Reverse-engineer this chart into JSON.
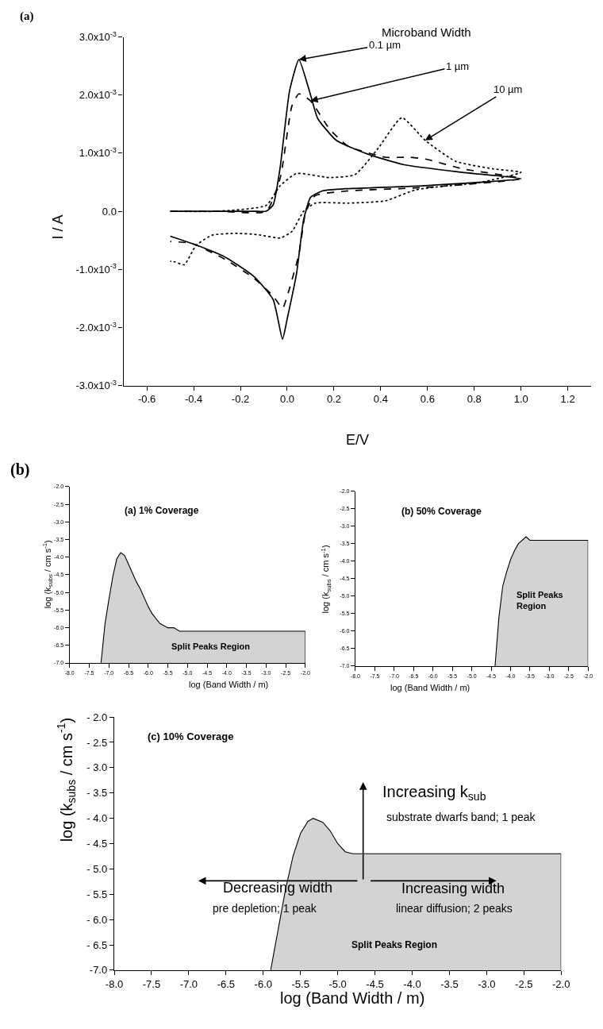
{
  "chart_data": [
    {
      "type": "line",
      "title": "(a)",
      "xlabel": "E/V",
      "ylabel": "I / A",
      "xlim": [
        -0.7,
        1.3
      ],
      "ylim": [
        -0.003,
        0.003
      ],
      "xticks": [
        -0.6,
        -0.4,
        -0.2,
        {
          "value": 0,
          "label": "0.0"
        },
        0.2,
        0.4,
        0.6,
        0.8,
        {
          "value": 1,
          "label": "1.0"
        },
        1.2
      ],
      "yticks": [
        {
          "value": -0.003,
          "label": "-3.0x10$^{-3}$"
        },
        {
          "value": -0.002,
          "label": "-2.0x10$^{-3}$"
        },
        {
          "value": -0.001,
          "label": "-1.0x10$^{-3}$"
        },
        {
          "value": 0,
          "label": "0.0"
        },
        {
          "value": 0.001,
          "label": "1.0x10$^{-3}$"
        },
        {
          "value": 0.002,
          "label": "2.0x10$^{-3}$"
        },
        {
          "value": 0.003,
          "label": "3.0x10$^{-3}$"
        }
      ],
      "series": [
        {
          "color": "#000000",
          "line_style": "solid",
          "x": [
            -0.5,
            -0.3,
            -0.14,
            -0.09,
            -0.06,
            -0.03,
            0.01,
            0.05,
            0.1,
            0.13,
            0.21,
            0.34,
            0.5,
            0.75,
            1.0,
            0.59,
            0.26,
            0.15,
            0.1,
            0.07,
            0.04,
            0.0,
            -0.02,
            -0.06,
            -0.14,
            -0.26,
            -0.39,
            -0.5
          ],
          "values": [
            0,
            0,
            0,
            0,
            0.00011,
            0.00076,
            0.00207,
            0.00261,
            0.002,
            0.0016,
            0.00122,
            0.00099,
            0.0008,
            0.00067,
            0.00056,
            0.00044,
            0.00039,
            0.00035,
            0.00024,
            -0.00015,
            -0.00107,
            -0.00185,
            -0.0022,
            -0.00152,
            -0.00113,
            -0.0008,
            -0.00058,
            -0.00043
          ]
        },
        {
          "color": "#000000",
          "line_style": "dashed",
          "x": [
            -0.5,
            -0.3,
            -0.09,
            -0.03,
            0.02,
            0.05,
            0.1,
            0.18,
            0.26,
            0.42,
            0.52,
            0.59,
            0.75,
            1.0,
            0.59,
            0.26,
            0.12,
            0.08,
            0.05,
            0.0,
            -0.02,
            -0.06,
            -0.14,
            -0.26,
            -0.39,
            -0.43,
            -0.5
          ],
          "values": [
            0,
            0,
            0,
            0.00057,
            0.00181,
            0.00202,
            0.0019,
            0.00142,
            0.00112,
            0.00093,
            0.00093,
            0.0009,
            0.00073,
            0.00056,
            0.00041,
            0.00035,
            0.00027,
            0.0,
            -0.00074,
            -0.00146,
            -0.00167,
            -0.00146,
            -0.00116,
            -0.00084,
            -0.00058,
            -0.00054,
            -0.00052
          ]
        },
        {
          "color": "#000000",
          "line_style": "dotted",
          "x": [
            -0.5,
            -0.3,
            -0.09,
            -0.03,
            0.04,
            0.18,
            0.29,
            0.39,
            0.49,
            0.59,
            0.72,
            0.88,
            1.0,
            0.83,
            0.55,
            0.42,
            0.26,
            0.12,
            0.07,
            0.02,
            -0.03,
            -0.13,
            -0.22,
            -0.32,
            -0.39,
            -0.44,
            -0.48,
            -0.5
          ],
          "values": [
            0,
            0,
            0.0001,
            0.00044,
            0.00065,
            0.00058,
            0.00063,
            0.00109,
            0.00161,
            0.00122,
            0.00086,
            0.00073,
            0.00067,
            0.0005,
            0.00037,
            0.00018,
            0.00014,
            0.00014,
            0.0,
            -0.00035,
            -0.00046,
            -0.0004,
            -0.00038,
            -0.00041,
            -0.00059,
            -0.00092,
            -0.00087,
            -0.00086
          ]
        }
      ],
      "annotations": [
        "Microband Width",
        {
          "text": "0.1 µm",
          "x": 0.05,
          "y": 0.00261
        },
        {
          "text": "1 µm",
          "x": 0.1,
          "y": 0.0019
        },
        {
          "text": "10 µm",
          "x": 0.59,
          "y": 0.00122
        }
      ]
    },
    {
      "type": "area",
      "title": "(a) 1% Coverage",
      "xlabel": "log (Band Width / m)",
      "ylabel": "log (k$_{subs}$ / cm s$^{-1}$)",
      "xlim": [
        -8,
        -2
      ],
      "ylim": [
        -7,
        -2
      ],
      "xticks": [
        {
          "value": -8,
          "label": "-8.0"
        },
        -7.5,
        {
          "value": -7,
          "label": "-7.0"
        },
        -6.5,
        {
          "value": -6,
          "label": "-6.0"
        },
        -5.5,
        {
          "value": -5,
          "label": "-5.0"
        },
        -4.5,
        {
          "value": -4,
          "label": "-4.0"
        },
        -3.5,
        {
          "value": -3,
          "label": "-3.0"
        },
        -2.5,
        {
          "value": -2,
          "label": "-2.0"
        }
      ],
      "yticks": [
        {
          "value": -7,
          "label": "-7.0"
        },
        -6.5,
        {
          "value": -6,
          "label": "-6.0"
        },
        -5.5,
        {
          "value": -5,
          "label": "-5.0"
        },
        -4.5,
        {
          "value": -4,
          "label": "-4.0"
        },
        -3.5,
        {
          "value": -3,
          "label": "-3.0"
        },
        -2.5,
        {
          "value": -2,
          "label": "-2.0"
        }
      ],
      "series": [
        {
          "color": "#d3d3d3",
          "x": [
            -7.2,
            -7.1,
            -7.0,
            -6.9,
            -6.8,
            -6.7,
            -6.6,
            -6.5,
            -6.3,
            -6.2,
            -6.0,
            -5.9,
            -5.7,
            -5.5,
            -5.35,
            -5.2,
            -2.0,
            -2.0
          ],
          "values": [
            -7.0,
            -5.9,
            -5.2,
            -4.55,
            -4.05,
            -3.87,
            -3.95,
            -4.2,
            -4.7,
            -4.9,
            -5.4,
            -5.6,
            -5.88,
            -6.0,
            -6.0,
            -6.1,
            -6.1,
            -7.0
          ]
        }
      ],
      "annotations": [
        "(b)",
        "Split Peaks Region"
      ]
    },
    {
      "type": "area",
      "title": "(b) 50% Coverage",
      "xlabel": "log (Band Width / m)",
      "ylabel": "log (k$_{subs}$ / cm s$^{-1}$)",
      "xlim": [
        -8,
        -2
      ],
      "ylim": [
        -7,
        -2
      ],
      "xticks": [
        {
          "value": -8,
          "label": "-8.0"
        },
        -7.5,
        {
          "value": -7,
          "label": "-7.0"
        },
        -6.5,
        {
          "value": -6,
          "label": "-6.0"
        },
        -5.5,
        {
          "value": -5,
          "label": "-5.0"
        },
        -4.5,
        {
          "value": -4,
          "label": "-4.0"
        },
        -3.5,
        {
          "value": -3,
          "label": "-3.0"
        },
        -2.5,
        {
          "value": -2,
          "label": "-2.0"
        }
      ],
      "yticks": [
        {
          "value": -7,
          "label": "-7.0"
        },
        -6.5,
        {
          "value": -6,
          "label": "-6.0"
        },
        -5.5,
        {
          "value": -5,
          "label": "-5.0"
        },
        -4.5,
        {
          "value": -4,
          "label": "-4.0"
        },
        -3.5,
        {
          "value": -3,
          "label": "-3.0"
        },
        -2.5,
        {
          "value": -2,
          "label": "-2.0"
        }
      ],
      "series": [
        {
          "color": "#d3d3d3",
          "x": [
            -4.4,
            -4.3,
            -4.2,
            -4.1,
            -4.0,
            -3.9,
            -3.8,
            -3.6,
            -3.5,
            -2.0,
            -2.0
          ],
          "values": [
            -7.0,
            -5.6,
            -4.7,
            -4.3,
            -3.95,
            -3.7,
            -3.5,
            -3.3,
            -3.4,
            -3.4,
            -7.0
          ]
        }
      ],
      "annotations": [
        "Split Peaks\nRegion"
      ]
    },
    {
      "type": "area",
      "title": "(c) 10% Coverage",
      "xlabel": "log (Band Width / m)",
      "ylabel": "log (k$_{subs}$ / cm s$^{-1}$)",
      "xlim": [
        -8,
        -2
      ],
      "ylim": [
        -7,
        -2
      ],
      "xticks": [
        {
          "value": -8,
          "label": "-8.0"
        },
        -7.5,
        {
          "value": -7,
          "label": "-7.0"
        },
        -6.5,
        {
          "value": -6,
          "label": "-6.0"
        },
        -5.5,
        {
          "value": -5,
          "label": "-5.0"
        },
        -4.5,
        {
          "value": -4,
          "label": "-4.0"
        },
        -3.5,
        {
          "value": -3,
          "label": "-3.0"
        },
        -2.5,
        {
          "value": -2,
          "label": "-2.0"
        }
      ],
      "yticks": [
        {
          "value": -7,
          "label": "-7.0"
        },
        {
          "value": -6.5,
          "label": "- 6.5"
        },
        {
          "value": -6,
          "label": "- 6.0"
        },
        {
          "value": -5.5,
          "label": "- 5.5"
        },
        {
          "value": -5,
          "label": "- 5.0"
        },
        {
          "value": -4.5,
          "label": "- 4.5"
        },
        {
          "value": -4,
          "label": "- 4.0"
        },
        {
          "value": -3.5,
          "label": "- 3.5"
        },
        {
          "value": -3,
          "label": "- 3.0"
        },
        {
          "value": -2.5,
          "label": "- 2.5"
        },
        {
          "value": -2,
          "label": "- 2.0"
        }
      ],
      "series": [
        {
          "color": "#d3d3d3",
          "x": [
            -5.9,
            -5.8,
            -5.7,
            -5.6,
            -5.5,
            -5.4,
            -5.33,
            -5.2,
            -5.1,
            -5.0,
            -4.9,
            -4.8,
            -2.0,
            -2.0
          ],
          "values": [
            -7.0,
            -6.2,
            -5.4,
            -4.75,
            -4.3,
            -4.06,
            -4.0,
            -4.08,
            -4.25,
            -4.5,
            -4.66,
            -4.7,
            -4.7,
            -7.0
          ]
        }
      ],
      "annotations": [
        "Increasing k$_{sub}$",
        "substrate dwarfs band; 1 peak",
        "Decreasing width",
        "pre depletion; 1 peak",
        "Increasing width",
        "linear diffusion; 2 peaks",
        "Split Peaks Region"
      ]
    }
  ]
}
